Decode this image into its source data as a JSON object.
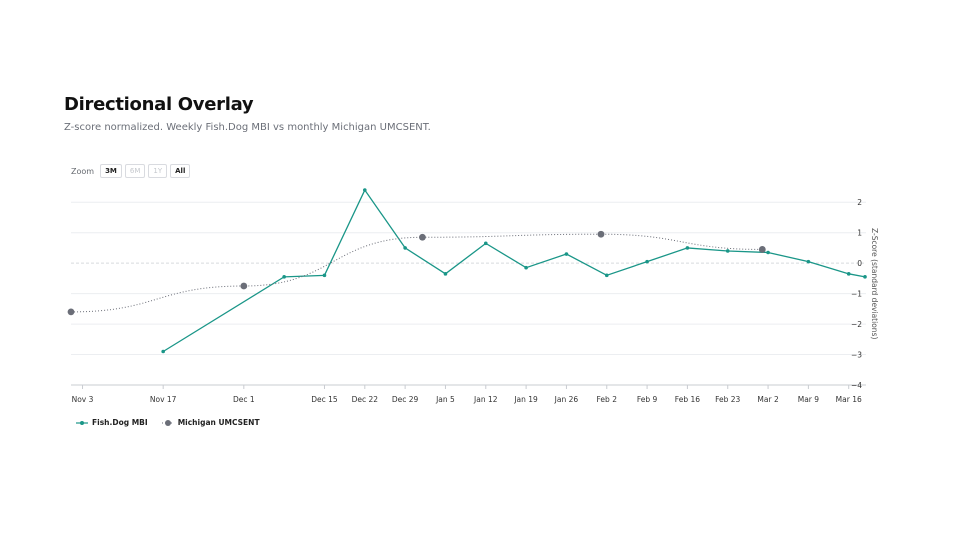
{
  "header": {
    "title": "Directional Overlay",
    "subtitle": "Z-score normalized. Weekly Fish.Dog MBI vs monthly Michigan UMCSENT."
  },
  "zoom": {
    "label": "Zoom",
    "buttons": [
      {
        "label": "3M",
        "enabled": true
      },
      {
        "label": "6M",
        "enabled": false
      },
      {
        "label": "1Y",
        "enabled": false
      },
      {
        "label": "All",
        "enabled": true
      }
    ]
  },
  "colors": {
    "mbi": "#1a9688",
    "umcsent": "#6b6e78",
    "grid": "#eceef1",
    "zero": "#d8dadd",
    "axis": "#c9ccd1"
  },
  "chart_data": {
    "type": "line",
    "x_type": "date",
    "xlim": [
      "2024-11-01",
      "2025-03-19"
    ],
    "ylim": [
      -4,
      2.5
    ],
    "ylabel": "Z-Score (standard deviations)",
    "y_ticks": [
      2,
      1,
      0,
      -1,
      -2,
      -3,
      -4
    ],
    "y_tick_labels": [
      "2",
      "1",
      "0",
      "−1",
      "−2",
      "−3",
      "−4"
    ],
    "x_ticks": [
      {
        "date": "2024-11-03",
        "label": "Nov 3"
      },
      {
        "date": "2024-11-17",
        "label": "Nov 17"
      },
      {
        "date": "2024-12-01",
        "label": "Dec 1"
      },
      {
        "date": "2024-12-15",
        "label": "Dec 15"
      },
      {
        "date": "2024-12-22",
        "label": "Dec 22"
      },
      {
        "date": "2024-12-29",
        "label": "Dec 29"
      },
      {
        "date": "2025-01-05",
        "label": "Jan 5"
      },
      {
        "date": "2025-01-12",
        "label": "Jan 12"
      },
      {
        "date": "2025-01-19",
        "label": "Jan 19"
      },
      {
        "date": "2025-01-26",
        "label": "Jan 26"
      },
      {
        "date": "2025-02-02",
        "label": "Feb 2"
      },
      {
        "date": "2025-02-09",
        "label": "Feb 9"
      },
      {
        "date": "2025-02-16",
        "label": "Feb 16"
      },
      {
        "date": "2025-02-23",
        "label": "Feb 23"
      },
      {
        "date": "2025-03-02",
        "label": "Mar 2"
      },
      {
        "date": "2025-03-09",
        "label": "Mar 9"
      },
      {
        "date": "2025-03-16",
        "label": "Mar 16"
      }
    ],
    "series": [
      {
        "name": "Fish.Dog MBI",
        "style": "solid",
        "points": [
          {
            "x": "2024-11-17",
            "y": -2.9
          },
          {
            "x": "2024-12-08",
            "y": -0.45
          },
          {
            "x": "2024-12-15",
            "y": -0.4
          },
          {
            "x": "2024-12-22",
            "y": 2.4
          },
          {
            "x": "2024-12-29",
            "y": 0.5
          },
          {
            "x": "2025-01-05",
            "y": -0.35
          },
          {
            "x": "2025-01-12",
            "y": 0.65
          },
          {
            "x": "2025-01-19",
            "y": -0.15
          },
          {
            "x": "2025-01-26",
            "y": 0.3
          },
          {
            "x": "2025-02-02",
            "y": -0.4
          },
          {
            "x": "2025-02-09",
            "y": 0.05
          },
          {
            "x": "2025-02-16",
            "y": 0.5
          },
          {
            "x": "2025-02-23",
            "y": 0.4
          },
          {
            "x": "2025-03-02",
            "y": 0.35
          },
          {
            "x": "2025-03-09",
            "y": 0.05
          },
          {
            "x": "2025-03-16",
            "y": -0.35
          },
          {
            "x": "2025-03-23",
            "y": -0.45
          }
        ]
      },
      {
        "name": "Michigan UMCSENT",
        "style": "dotted",
        "points": [
          {
            "x": "2024-11-01",
            "y": -1.6
          },
          {
            "x": "2024-12-01",
            "y": -0.75
          },
          {
            "x": "2025-01-01",
            "y": 0.85
          },
          {
            "x": "2025-02-01",
            "y": 0.95
          },
          {
            "x": "2025-03-01",
            "y": 0.45
          }
        ]
      }
    ],
    "legend": {
      "placement": "bottom-left"
    }
  }
}
